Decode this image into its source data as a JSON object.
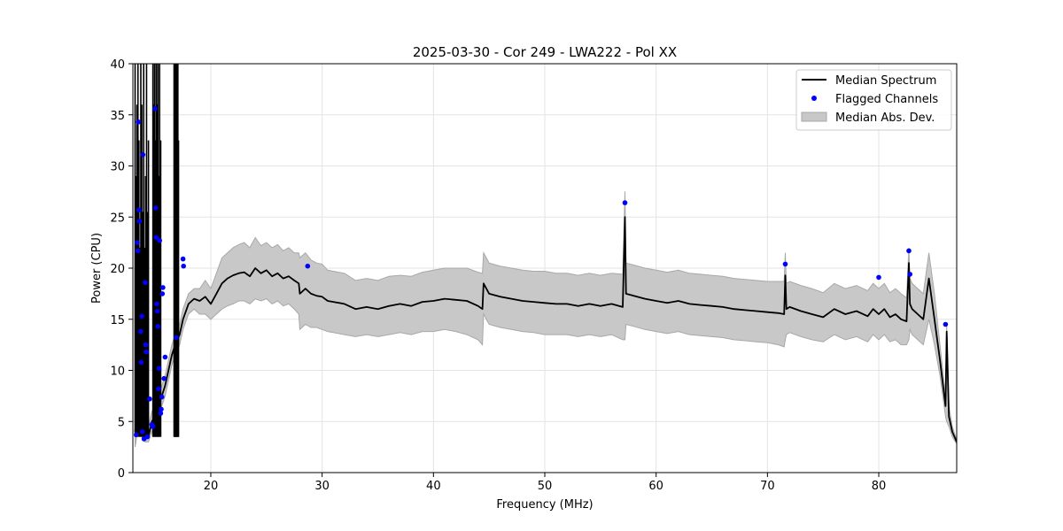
{
  "chart_data": {
    "type": "line",
    "title": "2025-03-30 - Cor 249 - LWA222 - Pol XX",
    "xlabel": "Frequency (MHz)",
    "ylabel": "Power (CPU)",
    "xlim": [
      13,
      87
    ],
    "ylim": [
      0,
      40
    ],
    "xticks": [
      20,
      30,
      40,
      50,
      60,
      70,
      80
    ],
    "yticks": [
      0,
      5,
      10,
      15,
      20,
      25,
      30,
      35,
      40
    ],
    "grid": true,
    "legend": {
      "placement": "top-right",
      "entries": [
        {
          "label": "Median Spectrum",
          "kind": "line",
          "color": "#000000"
        },
        {
          "label": "Flagged Channels",
          "kind": "marker",
          "color": "#0000ff"
        },
        {
          "label": "Median Abs. Dev.",
          "kind": "band",
          "color": "#c8c8c8"
        }
      ]
    },
    "colors": {
      "median": "#000000",
      "flagged": "#0000ff",
      "band_fill": "#c8c8c8",
      "band_edge": "#a8a8a8",
      "grid": "#e3e3e3"
    },
    "series": [
      {
        "name": "Median Spectrum",
        "x": [
          13.2,
          13.5,
          13.8,
          14.1,
          14.4,
          14.7,
          15.0,
          15.3,
          15.6,
          15.9,
          16.2,
          16.5,
          16.8,
          17.0,
          17.2,
          17.5,
          18.0,
          18.5,
          19.0,
          19.5,
          20.0,
          20.5,
          21.0,
          21.5,
          22.0,
          22.5,
          23.0,
          23.5,
          24.0,
          24.5,
          25.0,
          25.5,
          26.0,
          26.5,
          27.0,
          27.5,
          27.9,
          28.0,
          28.5,
          29.0,
          29.5,
          30.0,
          30.5,
          31.0,
          32.0,
          33.0,
          34.0,
          35.0,
          36.0,
          37.0,
          38.0,
          39.0,
          40.0,
          41.0,
          42.0,
          43.0,
          44.0,
          44.4,
          44.5,
          45.0,
          46.0,
          47.0,
          48.0,
          49.0,
          50.0,
          51.0,
          52.0,
          53.0,
          54.0,
          55.0,
          56.0,
          57.0,
          57.2,
          57.3,
          58.0,
          59.0,
          60.0,
          61.0,
          62.0,
          63.0,
          64.0,
          65.0,
          66.0,
          67.0,
          68.0,
          69.0,
          70.0,
          71.0,
          71.5,
          71.6,
          71.7,
          72.0,
          73.0,
          74.0,
          75.0,
          76.0,
          77.0,
          78.0,
          79.0,
          79.5,
          80.0,
          80.5,
          81.0,
          81.5,
          82.0,
          82.5,
          82.7,
          82.8,
          83.0,
          83.5,
          84.0,
          84.5,
          85.0,
          85.5,
          86.0,
          86.1,
          86.3,
          86.6,
          87.0
        ],
        "y": [
          4.0,
          6.5,
          5.0,
          4.0,
          3.5,
          5.0,
          5.5,
          6.5,
          7.5,
          8.5,
          10.0,
          11.5,
          12.5,
          13.0,
          13.5,
          15.0,
          16.5,
          17.0,
          16.8,
          17.2,
          16.5,
          17.5,
          18.5,
          19.0,
          19.3,
          19.5,
          19.6,
          19.2,
          20.0,
          19.5,
          19.8,
          19.2,
          19.5,
          19.0,
          19.2,
          18.8,
          18.5,
          17.5,
          18.0,
          17.5,
          17.3,
          17.2,
          16.8,
          16.7,
          16.5,
          16.0,
          16.2,
          16.0,
          16.3,
          16.5,
          16.3,
          16.7,
          16.8,
          17.0,
          16.9,
          16.8,
          16.3,
          16.0,
          18.5,
          17.5,
          17.2,
          17.0,
          16.8,
          16.7,
          16.6,
          16.5,
          16.5,
          16.3,
          16.5,
          16.3,
          16.5,
          16.2,
          25.0,
          17.5,
          17.3,
          17.0,
          16.8,
          16.6,
          16.8,
          16.5,
          16.4,
          16.3,
          16.2,
          16.0,
          15.9,
          15.8,
          15.7,
          15.6,
          15.5,
          19.3,
          16.0,
          16.2,
          15.8,
          15.5,
          15.2,
          16.0,
          15.5,
          15.8,
          15.3,
          16.0,
          15.5,
          16.0,
          15.2,
          15.5,
          15.0,
          14.8,
          20.5,
          16.5,
          16.0,
          15.5,
          15.0,
          19.0,
          15.0,
          11.0,
          6.5,
          13.8,
          5.5,
          4.0,
          3.0
        ],
        "mad_lower": [
          2.5,
          4.5,
          3.5,
          3.0,
          3.0,
          4.0,
          4.5,
          5.5,
          6.5,
          7.5,
          9.0,
          10.5,
          11.5,
          12.0,
          12.5,
          14.0,
          15.5,
          16.0,
          15.5,
          15.5,
          15.0,
          15.5,
          16.0,
          16.3,
          16.5,
          16.8,
          16.8,
          16.5,
          17.0,
          16.8,
          17.0,
          16.5,
          16.8,
          16.3,
          16.5,
          16.0,
          15.5,
          14.0,
          14.5,
          14.2,
          14.2,
          14.0,
          13.8,
          13.7,
          13.5,
          13.3,
          13.5,
          13.3,
          13.5,
          13.7,
          13.5,
          13.8,
          13.8,
          14.0,
          13.8,
          13.5,
          13.0,
          12.5,
          15.5,
          14.5,
          14.2,
          14.0,
          13.8,
          13.7,
          13.5,
          13.5,
          13.5,
          13.3,
          13.5,
          13.3,
          13.5,
          13.0,
          13.0,
          14.5,
          14.3,
          14.0,
          13.8,
          13.6,
          13.8,
          13.5,
          13.4,
          13.3,
          13.2,
          13.0,
          12.9,
          12.8,
          12.7,
          12.5,
          12.3,
          13.0,
          13.5,
          13.7,
          13.3,
          13.0,
          12.8,
          13.5,
          13.0,
          13.3,
          12.8,
          13.5,
          13.0,
          13.5,
          12.8,
          13.0,
          12.5,
          12.5,
          13.0,
          14.0,
          13.5,
          13.0,
          12.5,
          15.0,
          12.5,
          9.5,
          5.5,
          5.0,
          4.5,
          3.5,
          2.8
        ],
        "mad_upper": [
          5.5,
          8.5,
          6.5,
          5.0,
          4.5,
          6.0,
          6.5,
          7.5,
          8.5,
          9.5,
          11.0,
          12.5,
          13.5,
          14.0,
          14.5,
          16.0,
          17.5,
          18.0,
          18.0,
          18.8,
          18.0,
          19.5,
          21.0,
          21.5,
          22.0,
          22.3,
          22.5,
          22.0,
          23.0,
          22.2,
          22.5,
          22.0,
          22.3,
          21.7,
          22.0,
          21.5,
          21.5,
          21.0,
          21.5,
          20.8,
          20.5,
          20.4,
          19.8,
          19.7,
          19.5,
          18.8,
          19.0,
          18.8,
          19.2,
          19.3,
          19.2,
          19.6,
          19.8,
          20.0,
          20.0,
          20.0,
          19.6,
          19.5,
          21.5,
          20.5,
          20.2,
          20.0,
          19.8,
          19.7,
          19.7,
          19.5,
          19.5,
          19.3,
          19.5,
          19.3,
          19.5,
          19.4,
          27.5,
          20.5,
          20.3,
          20.0,
          19.8,
          19.6,
          19.8,
          19.5,
          19.4,
          19.3,
          19.2,
          19.0,
          18.9,
          18.8,
          18.7,
          18.7,
          18.7,
          21.5,
          18.5,
          18.7,
          18.3,
          18.0,
          17.6,
          18.5,
          18.0,
          18.3,
          17.8,
          18.5,
          18.0,
          18.5,
          17.6,
          18.0,
          17.5,
          17.1,
          22.0,
          19.0,
          18.5,
          18.0,
          17.5,
          21.5,
          17.5,
          12.5,
          7.5,
          14.5,
          6.5,
          4.5,
          3.2
        ]
      },
      {
        "name": "Flagged Channels",
        "x": [
          13.3,
          13.4,
          13.45,
          13.5,
          13.55,
          13.6,
          13.7,
          13.75,
          13.8,
          13.85,
          13.9,
          14.0,
          14.1,
          14.15,
          14.2,
          14.3,
          14.5,
          14.7,
          14.8,
          15.0,
          15.05,
          15.1,
          15.15,
          15.2,
          15.25,
          15.3,
          15.35,
          15.4,
          15.5,
          15.55,
          15.6,
          15.65,
          15.7,
          15.8,
          15.9,
          16.9,
          17.5,
          17.55,
          28.7,
          57.2,
          71.6,
          80.0,
          82.7,
          82.8,
          86.0
        ],
        "y": [
          3.7,
          22.5,
          21.7,
          34.3,
          25.7,
          24.6,
          13.8,
          10.8,
          15.3,
          4.0,
          31.1,
          3.3,
          18.6,
          12.5,
          11.8,
          3.5,
          7.2,
          4.7,
          4.5,
          35.6,
          25.9,
          23.0,
          16.5,
          15.8,
          14.3,
          8.2,
          10.2,
          22.7,
          5.8,
          6.2,
          7.4,
          17.5,
          18.1,
          9.2,
          11.3,
          13.2,
          20.9,
          20.2,
          20.2,
          26.4,
          20.4,
          19.1,
          21.7,
          19.4,
          14.5
        ]
      }
    ],
    "rfi_spikes": [
      {
        "x_range": [
          13.2,
          14.4
        ],
        "peak_y": 40
      },
      {
        "x_range": [
          14.8,
          15.5
        ],
        "peak_y": 40
      },
      {
        "x_range": [
          16.7,
          17.1
        ],
        "peak_y": 40
      }
    ]
  }
}
